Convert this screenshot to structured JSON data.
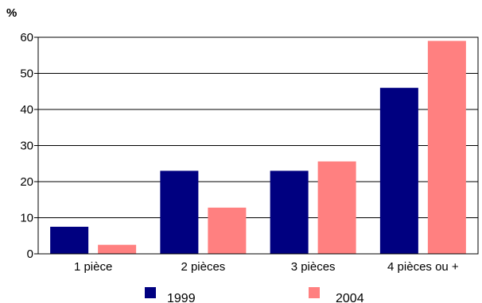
{
  "chart_data": {
    "type": "bar",
    "y_unit": "%",
    "categories": [
      "1 pièce",
      "2 pièces",
      "3 pièces",
      "4 pièces ou +"
    ],
    "series": [
      {
        "name": "1999",
        "color": "#000080",
        "values": [
          7.5,
          23,
          23,
          46
        ]
      },
      {
        "name": "2004",
        "color": "#FF8080",
        "values": [
          2.5,
          12.8,
          25.6,
          59
        ]
      }
    ],
    "ylim": [
      0,
      60
    ],
    "yticks": [
      0,
      10,
      20,
      30,
      40,
      50,
      60
    ],
    "grid": true,
    "legend_position": "bottom"
  }
}
